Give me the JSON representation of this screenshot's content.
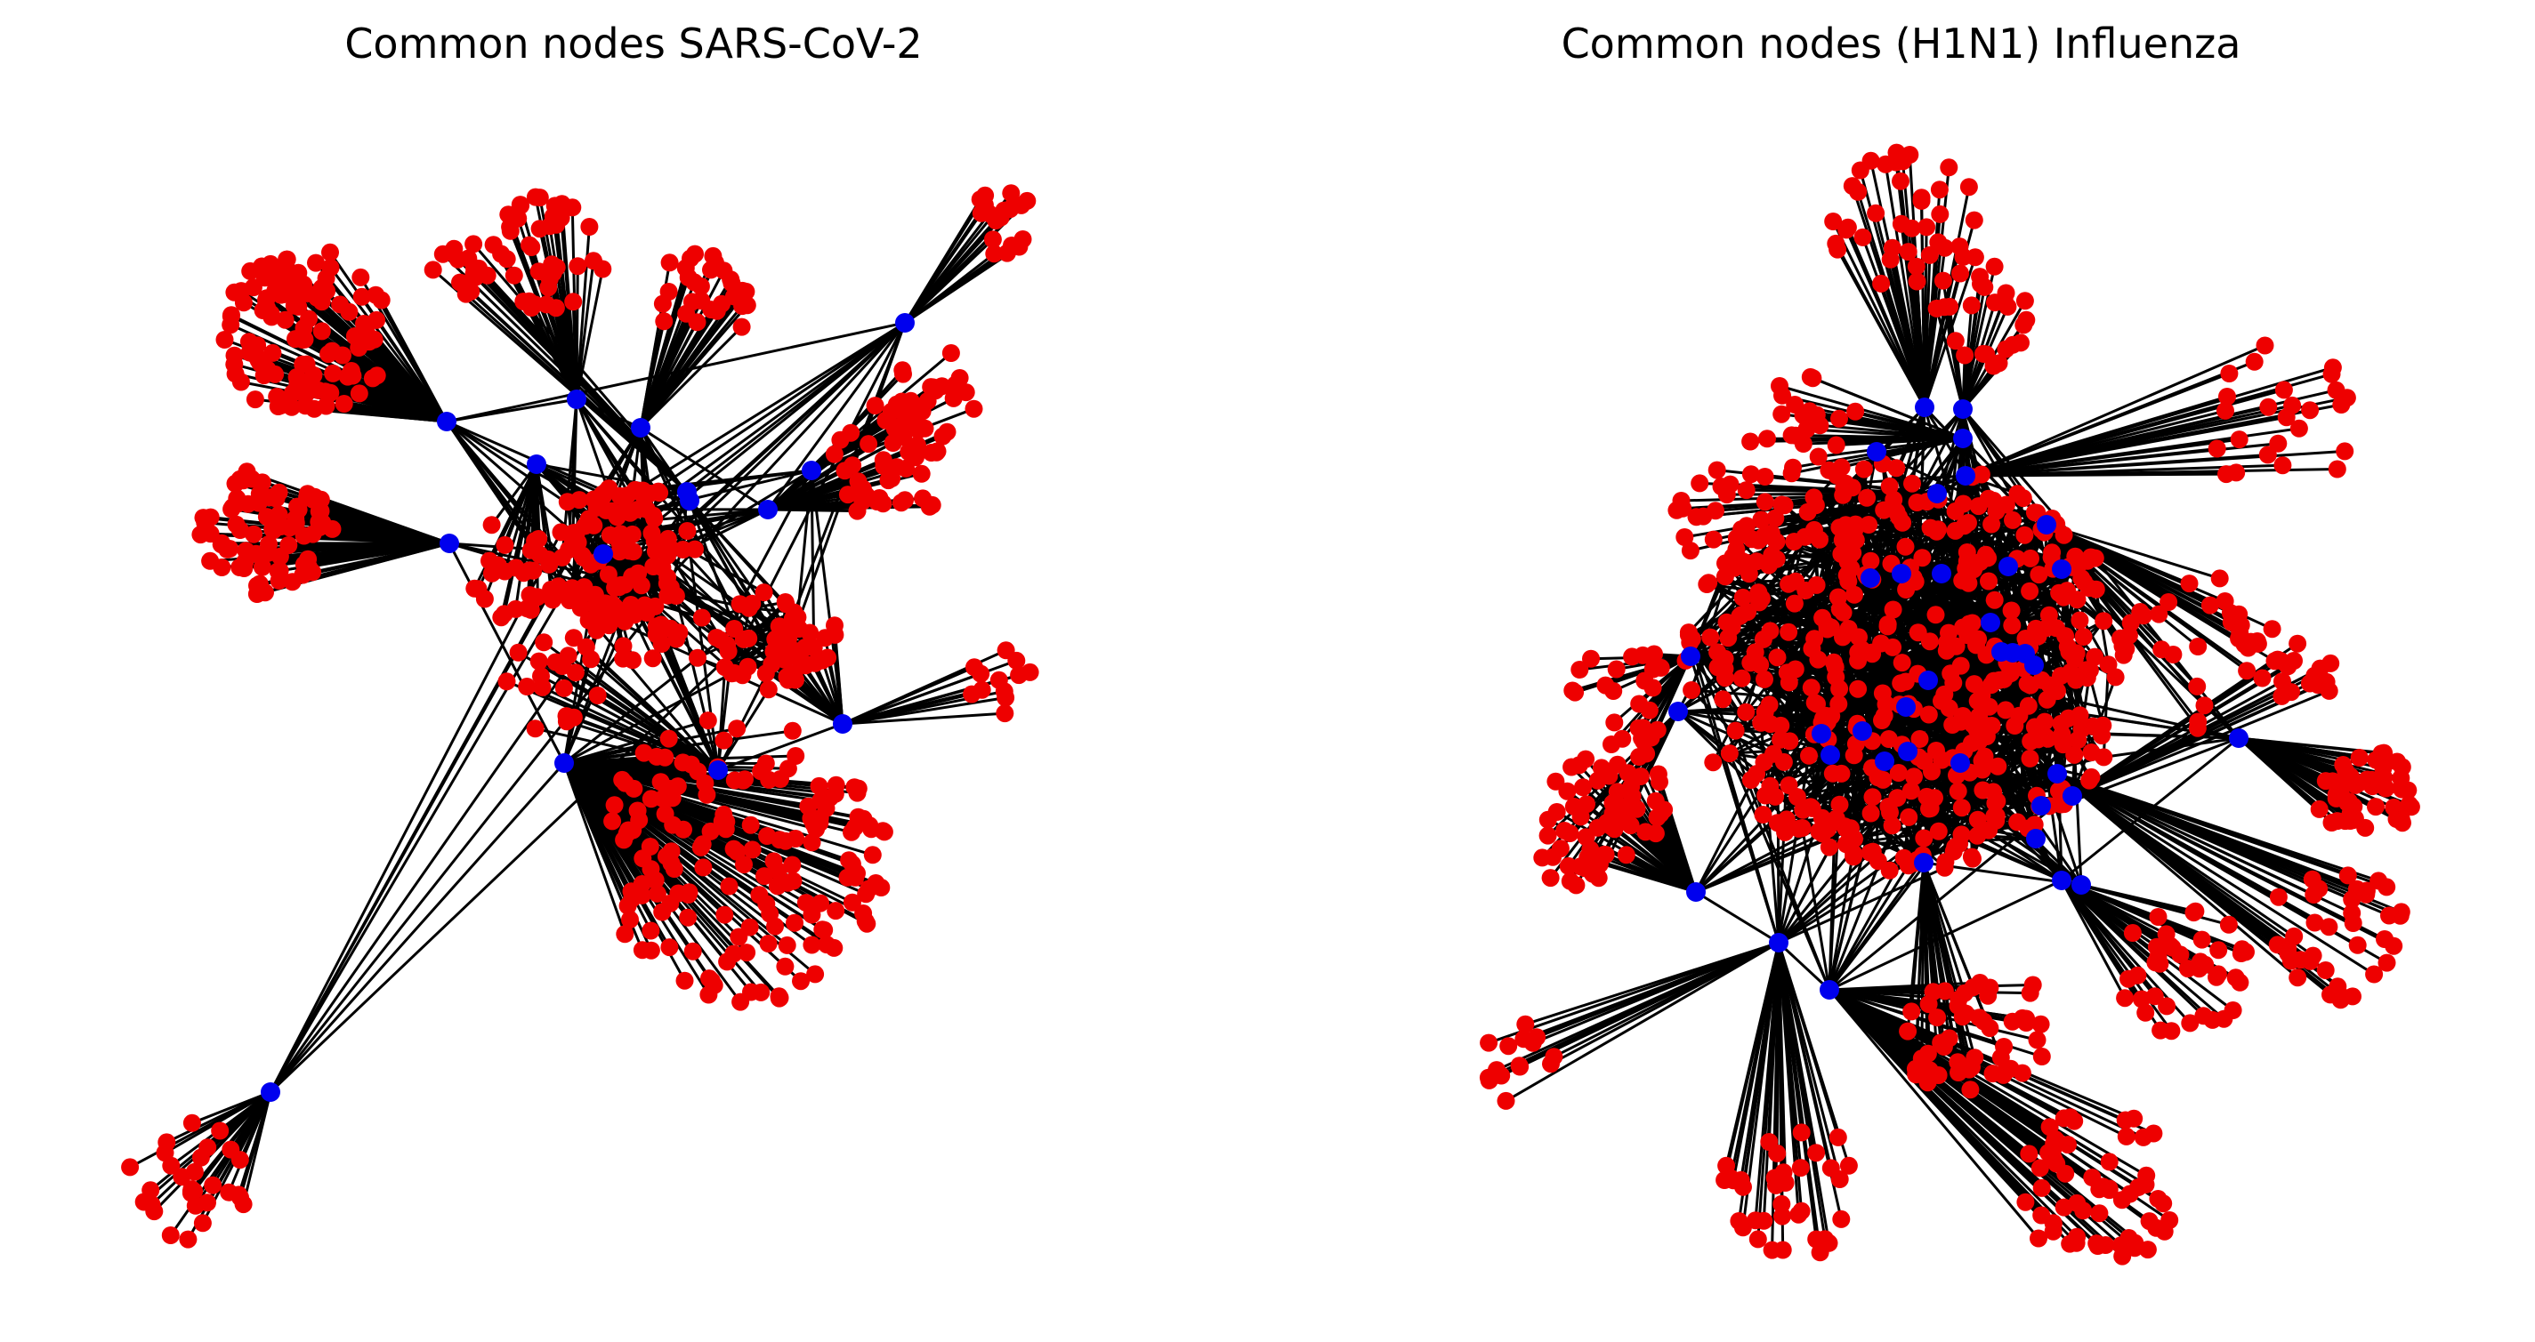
{
  "figure": {
    "panels": [
      {
        "id": "sars-cov-2",
        "title": "Common nodes SARS-CoV-2"
      },
      {
        "id": "h1n1",
        "title": "Common nodes (H1N1) Influenza"
      }
    ]
  },
  "colors": {
    "node_peripheral": "#ee0000",
    "node_common": "#0000ee",
    "edge": "#000000",
    "background": "#ffffff"
  },
  "legend": {
    "common_node_color": "blue",
    "peripheral_node_color": "red"
  }
}
